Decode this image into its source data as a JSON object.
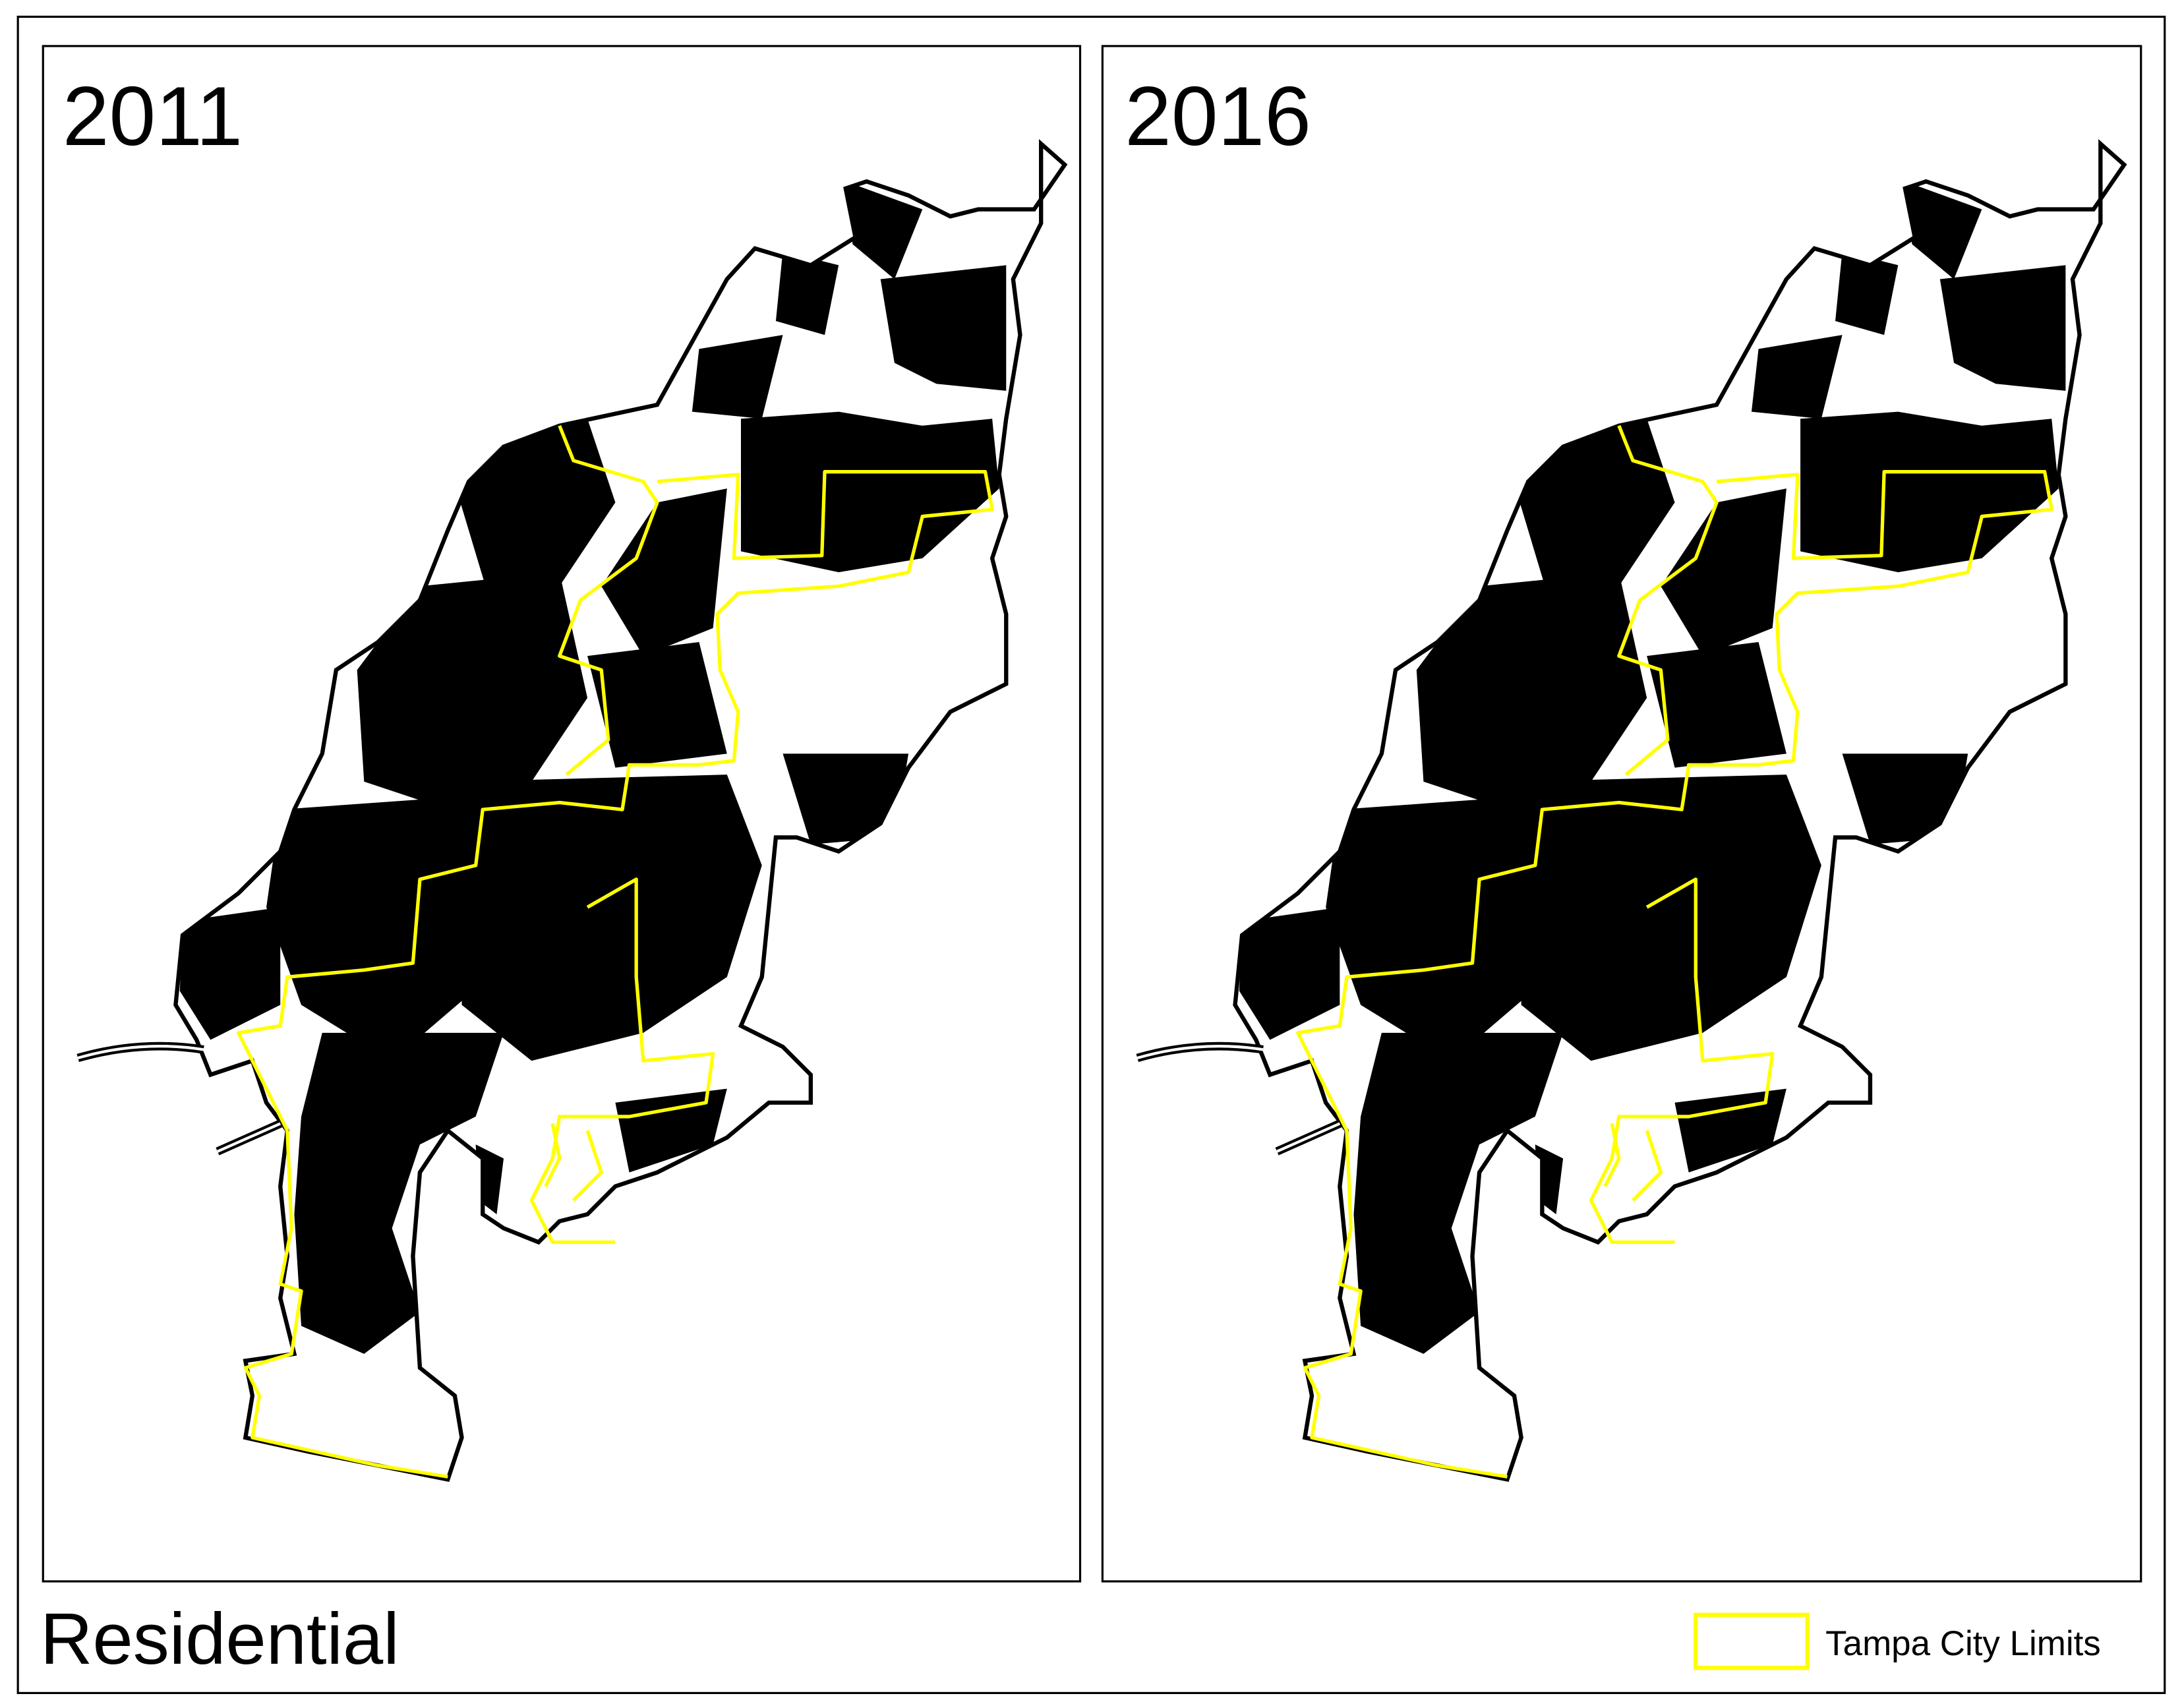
{
  "panels": [
    {
      "title": "2011"
    },
    {
      "title": "2016"
    }
  ],
  "caption": "Residential",
  "legend": {
    "label": "Tampa City Limits"
  }
}
